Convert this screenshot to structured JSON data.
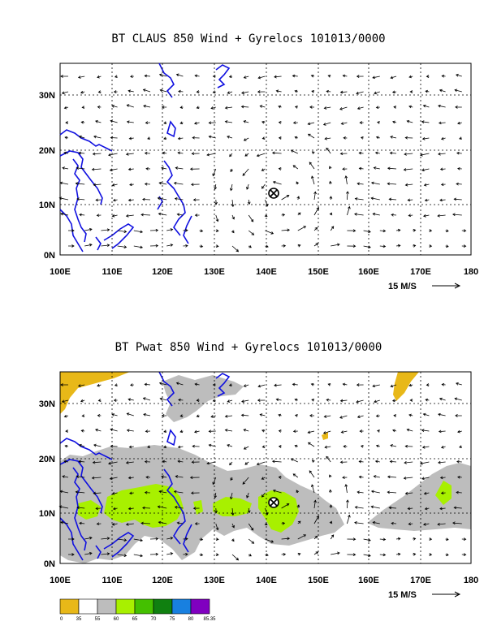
{
  "panels": [
    {
      "title": "BT CLAUS 850 Wind + Gyrelocs 101013/0000",
      "lon_labels": [
        "100E",
        "110E",
        "120E",
        "130E",
        "140E",
        "150E",
        "160E",
        "170E",
        "180"
      ],
      "lat_labels": [
        "0N",
        "10N",
        "20N",
        "30N"
      ],
      "ref_vector": "15 M/S",
      "gyre_marker": "gyre-location-marker"
    },
    {
      "title": "BT Pwat 850 Wind + Gyrelocs 101013/0000",
      "lon_labels": [
        "100E",
        "110E",
        "120E",
        "130E",
        "140E",
        "150E",
        "160E",
        "170E",
        "180"
      ],
      "lat_labels": [
        "0N",
        "10N",
        "20N",
        "30N"
      ],
      "ref_vector": "15 M/S",
      "gyre_marker": "gyre-location-marker"
    }
  ],
  "colorbar": {
    "labels": [
      "0",
      "35",
      "55",
      "60",
      "65",
      "70",
      "75",
      "80",
      "85.35"
    ],
    "colors": [
      "#e8b818",
      "#ffffff",
      "#bdbdbd",
      "#a8f000",
      "#44c000",
      "#108010",
      "#1880e0",
      "#8000c0"
    ]
  },
  "colors": {
    "coast": "#1010e0",
    "grid": "#000000"
  }
}
